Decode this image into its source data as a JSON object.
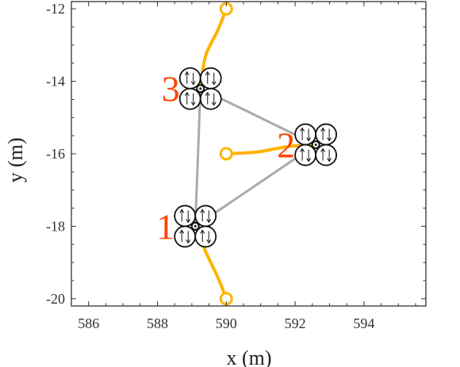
{
  "chart_data": {
    "type": "line",
    "title": "",
    "xlabel": "x (m)",
    "ylabel": "y (m)",
    "xlim": [
      585.5,
      595.8
    ],
    "ylim": [
      -20.2,
      -11.8
    ],
    "xticks": [
      586,
      588,
      590,
      592,
      594
    ],
    "yticks": [
      -12,
      -14,
      -16,
      -18,
      -20
    ],
    "grid": false,
    "colors": {
      "trajectory": "#FFB300",
      "formation": "#AAAAAA",
      "drone_label": "#FF4500",
      "drone": "#111111"
    },
    "formation_links": [
      [
        1,
        2
      ],
      [
        1,
        3
      ],
      [
        2,
        3
      ]
    ],
    "drones": [
      {
        "label": "1",
        "position": [
          589.1,
          -18.0
        ],
        "start": [
          590.0,
          -20.0
        ],
        "trajectory": [
          [
            590.0,
            -20.0
          ],
          [
            589.75,
            -19.4
          ],
          [
            589.4,
            -18.7
          ],
          [
            589.1,
            -18.0
          ]
        ]
      },
      {
        "label": "2",
        "position": [
          592.6,
          -15.75
        ],
        "start": [
          590.0,
          -16.0
        ],
        "trajectory": [
          [
            590.0,
            -16.0
          ],
          [
            590.9,
            -15.95
          ],
          [
            591.8,
            -15.8
          ],
          [
            592.6,
            -15.75
          ]
        ]
      },
      {
        "label": "3",
        "position": [
          589.25,
          -14.2
        ],
        "start": [
          590.0,
          -12.0
        ],
        "trajectory": [
          [
            590.0,
            -12.0
          ],
          [
            589.75,
            -12.6
          ],
          [
            589.4,
            -13.3
          ],
          [
            589.25,
            -14.2
          ]
        ]
      }
    ]
  }
}
